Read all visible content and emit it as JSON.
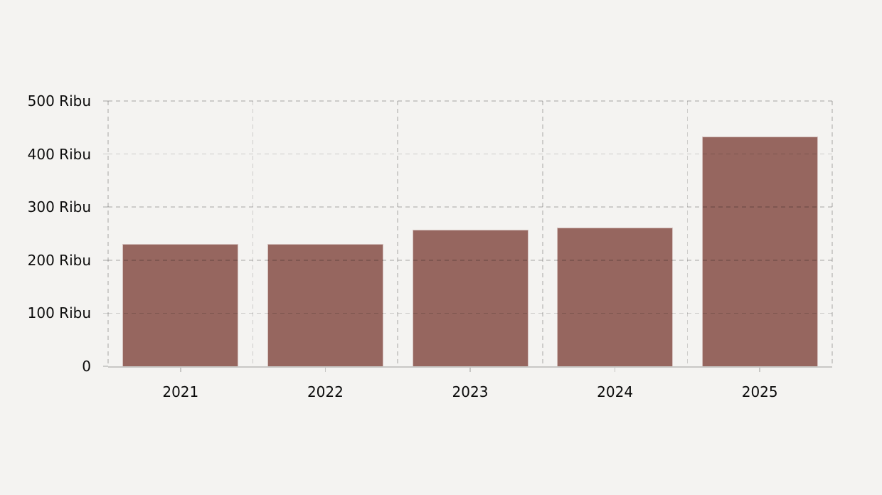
{
  "colors": {
    "background": "#f4f3f1",
    "bar": "#96665f",
    "bar_border": "rgba(255,255,255,0.6)",
    "grid": "rgba(0,0,0,0.16)",
    "axis": "rgba(0,0,0,0.18)",
    "text": "#0b0b0b"
  },
  "chart_data": {
    "type": "bar",
    "title": "",
    "xlabel": "",
    "ylabel": "",
    "categories": [
      "2021",
      "2022",
      "2023",
      "2024",
      "2025"
    ],
    "values": [
      230,
      230,
      258,
      262,
      433
    ],
    "unit": "Ribu",
    "ylim": [
      0,
      500
    ],
    "y_tick_step": 100,
    "y_tick_labels": [
      "0",
      "100 Ribu",
      "200 Ribu",
      "300 Ribu",
      "400 Ribu",
      "500 Ribu"
    ],
    "grid": true,
    "grid_style": "dashed",
    "legend": false,
    "series_name": ""
  }
}
